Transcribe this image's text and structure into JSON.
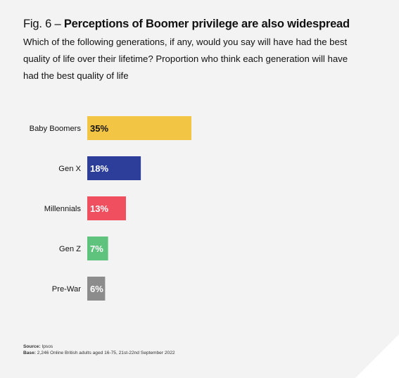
{
  "header": {
    "fig_label": "Fig. 6 – ",
    "title_bold": "Perceptions of Boomer privilege are also widespread",
    "subtitle": "Which of the following generations, if any, would you say will have had the best quality of life over their lifetime? Proportion who think each generation will have had the best quality of life"
  },
  "chart_data": {
    "type": "bar",
    "orientation": "horizontal",
    "title": "Fig. 6 – Perceptions of Boomer privilege are also widespread",
    "subtitle": "Which of the following generations, if any, would you say will have had the best quality of life over their lifetime? Proportion who think each generation will have had the best quality of life",
    "categories": [
      "Baby Boomers",
      "Gen X",
      "Millennials",
      "Gen Z",
      "Pre-War"
    ],
    "values": [
      35,
      18,
      13,
      7,
      6
    ],
    "value_labels": [
      "35%",
      "18%",
      "13%",
      "7%",
      "6%"
    ],
    "unit": "%",
    "colors": [
      "#f3c545",
      "#2d3e9a",
      "#ef4f5e",
      "#5fc27d",
      "#8c8c8c"
    ],
    "value_label_colors": [
      "#111111",
      "#ffffff",
      "#ffffff",
      "#ffffff",
      "#ffffff"
    ],
    "xlim": [
      0,
      100
    ],
    "grid": false,
    "legend": "none"
  },
  "footer": {
    "source_label": "Source:",
    "source_text": " Ipsos",
    "base_label": "Base:",
    "base_text": " 2,246 Online British adults aged 16-75, 21st-22nd September 2022"
  }
}
